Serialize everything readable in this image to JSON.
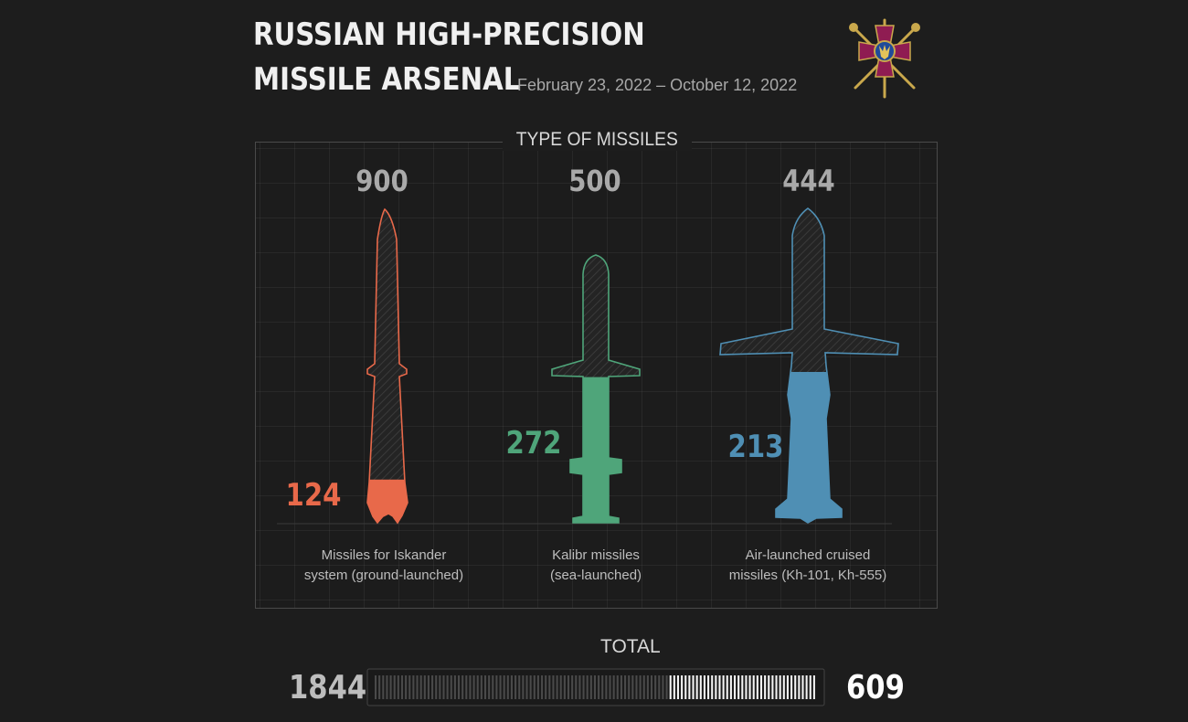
{
  "header": {
    "title_line1": "RUSSIAN HIGH-PRECISION",
    "title_line2": "MISSILE ARSENAL",
    "date_range": "February 23, 2022 – October 12, 2022",
    "emblem_icon": "ministry-of-defence-emblem"
  },
  "chart_data": {
    "type": "bar",
    "title": "TYPE OF MISSILES",
    "categories": [
      "Missiles for Iskander system (ground-launched)",
      "Kalibr missiles (sea-launched)",
      "Air-launched cruised missiles (Kh-101, Kh-555)"
    ],
    "caption_lines": [
      [
        "Missiles for Iskander",
        "system (ground-launched)"
      ],
      [
        "Kalibr missiles",
        "(sea-launched)"
      ],
      [
        "Air-launched cruised",
        "missiles (Kh-101, Kh-555)"
      ]
    ],
    "series": [
      {
        "values": [
          900,
          500,
          444
        ]
      },
      {
        "values": [
          124,
          272,
          213
        ]
      }
    ],
    "colors": [
      "#e8694a",
      "#4fa57a",
      "#4f8fb4"
    ],
    "total": {
      "label": "TOTAL",
      "left": 1844,
      "right": 609
    }
  }
}
